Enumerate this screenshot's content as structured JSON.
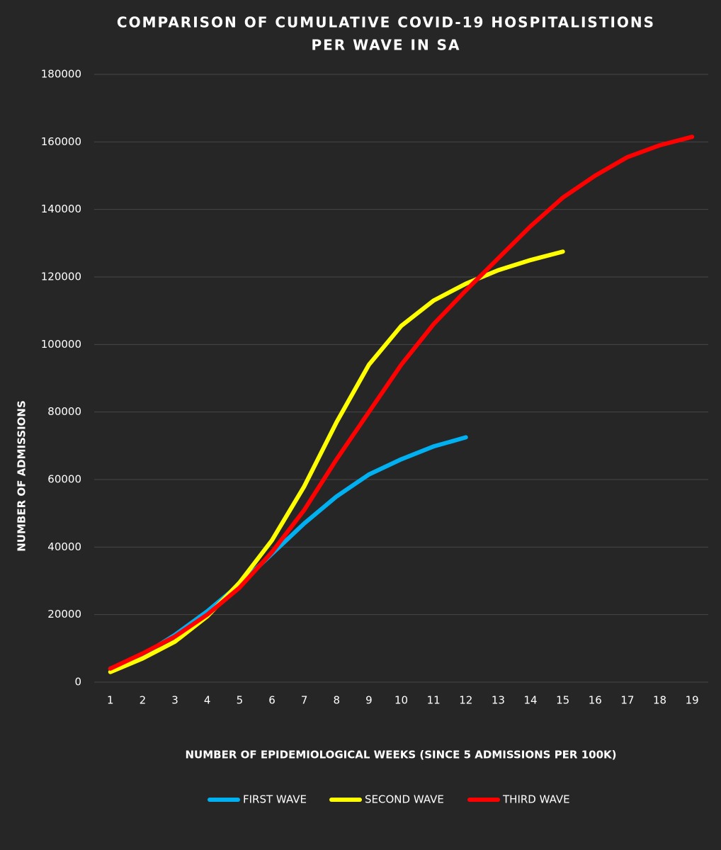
{
  "chart_data": {
    "type": "line",
    "title": "COMPARISON OF CUMULATIVE COVID-19 HOSPITALISTIONS",
    "subtitle": "PER WAVE IN SA",
    "x_label": "NUMBER OF EPIDEMIOLOGICAL WEEKS (SINCE 5 ADMISSIONS PER 100K)",
    "y_label": "NUMBER OF ADMISSIONS",
    "categories": [
      1,
      2,
      3,
      4,
      5,
      6,
      7,
      8,
      9,
      10,
      11,
      12,
      13,
      14,
      15,
      16,
      17,
      18,
      19
    ],
    "series": [
      {
        "name": "FIRST WAVE",
        "color": "#00b0f0",
        "values": [
          4000,
          8000,
          14000,
          21000,
          29000,
          38000,
          47000,
          55000,
          61500,
          66000,
          69800,
          72500,
          null,
          null,
          null,
          null,
          null,
          null,
          null
        ]
      },
      {
        "name": "SECOND WAVE",
        "color": "#ffff00",
        "values": [
          3000,
          7000,
          12000,
          19500,
          29500,
          42000,
          58000,
          77000,
          94000,
          105500,
          113000,
          118000,
          122000,
          125000,
          127500,
          null,
          null,
          null,
          null
        ]
      },
      {
        "name": "THIRD WAVE",
        "color": "#ff0000",
        "values": [
          4000,
          8500,
          13500,
          20000,
          28000,
          38500,
          51000,
          66000,
          80000,
          94000,
          106000,
          116000,
          125500,
          135000,
          143500,
          150000,
          155500,
          159000,
          161500
        ]
      }
    ],
    "ylim": [
      0,
      180000
    ],
    "yticks": [
      0,
      20000,
      40000,
      60000,
      80000,
      100000,
      120000,
      140000,
      160000,
      180000
    ],
    "grid": true,
    "legend": "bottom"
  }
}
